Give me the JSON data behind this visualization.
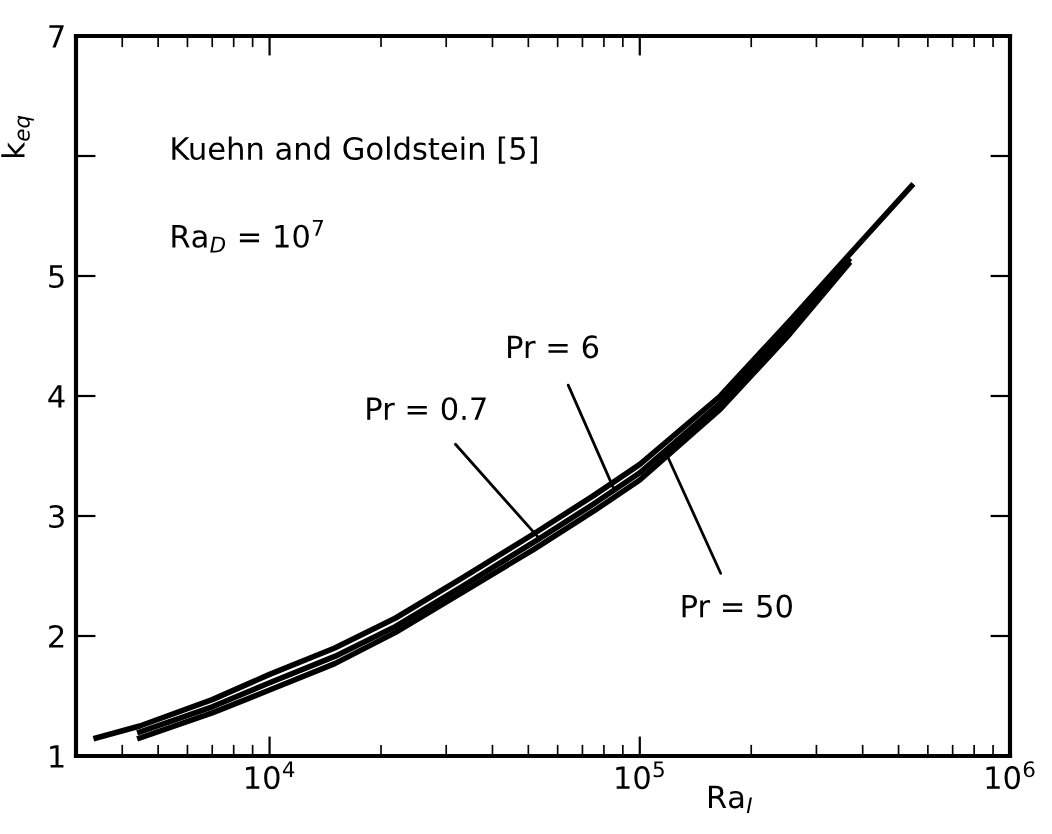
{
  "chart_data": {
    "type": "line",
    "xlabel": "Ra$_{I}$",
    "ylabel": "k$_{eq}$",
    "log": "x",
    "xlim": [
      3000,
      1000000
    ],
    "xticks": [
      {
        "value": 10000,
        "label": "10$^{4}$"
      },
      {
        "value": 100000,
        "label": "10$^{5}$"
      },
      {
        "value": 1000000,
        "label": "10$^{6}$"
      }
    ],
    "ylim": [
      1,
      7
    ],
    "yticks": [
      1,
      2,
      3,
      4,
      5,
      {
        "value": 6,
        "label": null
      },
      7
    ],
    "grid": false,
    "marker": "none",
    "line_style": "solid",
    "series": [
      {
        "color": "#000000",
        "x": [
          3400,
          4460,
          7000,
          10000,
          15000,
          21900,
          33000,
          51600,
          75000,
          100000,
          165000,
          253000,
          366000,
          542000
        ],
        "values": [
          1.15,
          1.25,
          1.47,
          1.68,
          1.9,
          2.15,
          2.48,
          2.85,
          3.17,
          3.43,
          4.0,
          4.62,
          5.17,
          5.75
        ]
      },
      {
        "color": "#000000",
        "x": [
          4460,
          7000,
          10000,
          15000,
          21900,
          33000,
          51600,
          75000,
          100000,
          165000,
          253000,
          366000
        ],
        "values": [
          1.2,
          1.41,
          1.61,
          1.83,
          2.08,
          2.41,
          2.78,
          3.1,
          3.36,
          3.94,
          4.56,
          5.13
        ]
      },
      {
        "color": "#000000",
        "x": [
          4460,
          7000,
          10000,
          15000,
          21900,
          33000,
          51600,
          75000,
          100000,
          165000,
          253000,
          366000
        ],
        "values": [
          1.15,
          1.36,
          1.55,
          1.77,
          2.03,
          2.36,
          2.72,
          3.04,
          3.3,
          3.89,
          4.51,
          5.1
        ]
      }
    ],
    "annotations": [
      "Kuehn and Goldstein [5]",
      "Ra$_{D}$ = 10$^{7}$",
      {
        "text": "Pr = 0.7",
        "x": 52900,
        "y": 2.83
      },
      {
        "text": "Pr = 6",
        "x": 85000,
        "y": 3.23
      },
      {
        "text": "Pr = 50",
        "x": 118700,
        "y": 3.5
      }
    ]
  }
}
